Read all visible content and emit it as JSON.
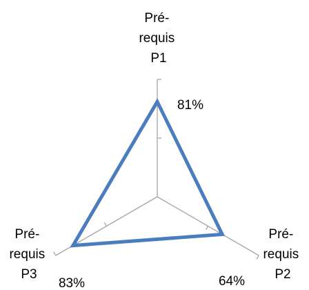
{
  "chart_data": {
    "type": "radar",
    "categories": [
      [
        "Pré-",
        "requis",
        "P1"
      ],
      [
        "Pré-",
        "requis",
        "P2"
      ],
      [
        "Pré-",
        "requis",
        "P3"
      ]
    ],
    "series": [
      {
        "values": [
          0.81,
          0.64,
          0.83
        ],
        "labels": [
          "81%",
          "64%",
          "83%"
        ],
        "color": "#4a7dbd"
      }
    ],
    "rlim": [
      0,
      1
    ],
    "rticks": [
      0,
      0.5,
      1
    ],
    "grid": false,
    "legend": "none",
    "axis_color": "#a6a6a6"
  }
}
